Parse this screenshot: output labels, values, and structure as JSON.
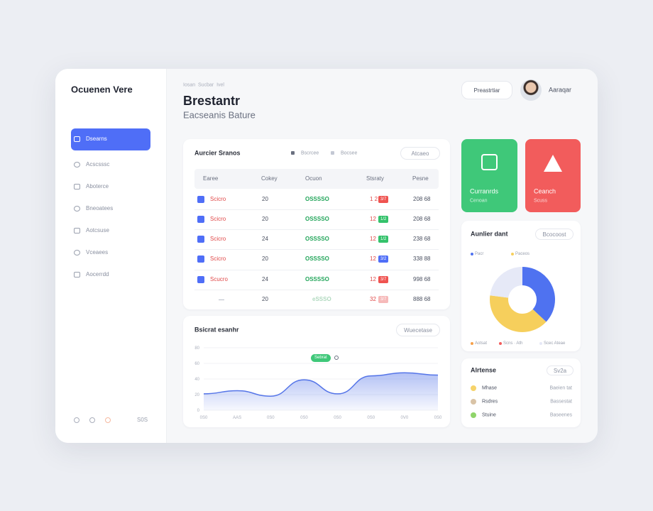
{
  "sidebar": {
    "brand": "Ocuenen Vere",
    "nav": [
      "Dsearns",
      "Acscsssc",
      "Aboterce",
      "Bneoatees",
      "Aotcsuse",
      "Vceaees",
      "Aocerrdd"
    ],
    "footer": "S0S"
  },
  "header": {
    "breadcrumb": "Iosan  Sucbar  Ivel",
    "title": "Brestantr",
    "subtitle": "Eacseanis Bature",
    "button": "Preastrtiar",
    "user": "Aaraqar"
  },
  "table": {
    "title": "Aurcier Sranos",
    "legend": [
      "Bscrcee",
      "Bocsee"
    ],
    "action": "Atcaeo",
    "columns": [
      "Earee",
      "Cokey",
      "Ocuon",
      "Stsraty",
      "Pesne"
    ],
    "rows": [
      {
        "name": "Scicro",
        "qty": "20",
        "code": "OSSSSO",
        "num": "1 2",
        "badge": "3/7",
        "badge_color": "#ef5350",
        "price": "208 68"
      },
      {
        "name": "Scicro",
        "qty": "20",
        "code": "OSSSSO",
        "num": "12",
        "badge": "1/2",
        "badge_color": "#34c26b",
        "price": "208 68"
      },
      {
        "name": "Scicro",
        "qty": "24",
        "code": "OSSSSO",
        "num": "12",
        "badge": "1/2",
        "badge_color": "#34c26b",
        "price": "238 68"
      },
      {
        "name": "Scicro",
        "qty": "20",
        "code": "OSSSSO",
        "num": "12",
        "badge": "3/2",
        "badge_color": "#4f6ef7",
        "price": "338 88"
      },
      {
        "name": "Scucro",
        "qty": "24",
        "code": "OSSSSO",
        "num": "12",
        "badge": "3/7",
        "badge_color": "#ef5350",
        "price": "998 68"
      },
      {
        "qty": "20",
        "code": "eSSSO",
        "num": "32",
        "badge": "3/7",
        "badge_color": "#f6b9b9",
        "price": "888 68"
      }
    ]
  },
  "status_cards": [
    {
      "title": "Curranrds",
      "subtitle": "Cenoan",
      "color": "#3fc879"
    },
    {
      "title": "Ceanch",
      "subtitle": "Scuss",
      "color": "#f25c5c"
    }
  ],
  "donut": {
    "type": "pie",
    "title": "Aunlier dant",
    "action": "Bcocoost",
    "legend_top": [
      "Pacr",
      "Paceos"
    ],
    "legend_bottom": [
      "Aotsat",
      "Scns · Ath",
      "Scec Ateae"
    ],
    "values": [
      37,
      40,
      23
    ],
    "colors": [
      "#4f72f0",
      "#f6cf5c",
      "#e6e9f7"
    ]
  },
  "alerts": {
    "title": "Alrtense",
    "action": "Sv2a",
    "items": [
      {
        "name": "Mhase",
        "detail": "Baeien tat",
        "color": "#f6d36a"
      },
      {
        "name": "Rsdres",
        "detail": "Bassestat",
        "color": "#d9c3a6"
      },
      {
        "name": "Stuine",
        "detail": "Baseenes",
        "color": "#8fd46a"
      }
    ]
  },
  "area_chart": {
    "type": "line",
    "title": "Bsicrat esanhr",
    "action": "Wuecetase",
    "annotation": "Sebrat",
    "categories": [
      "0S0",
      "AAS",
      "0S0",
      "0S0",
      "0S0",
      "0S0",
      "0V0",
      "0S0"
    ],
    "values": [
      21,
      25,
      18,
      39,
      21,
      44,
      48,
      45
    ],
    "color": "#5575e8",
    "ylim": [
      0,
      80
    ],
    "yticks": [
      0,
      20,
      40,
      60,
      80
    ],
    "grid": true
  }
}
